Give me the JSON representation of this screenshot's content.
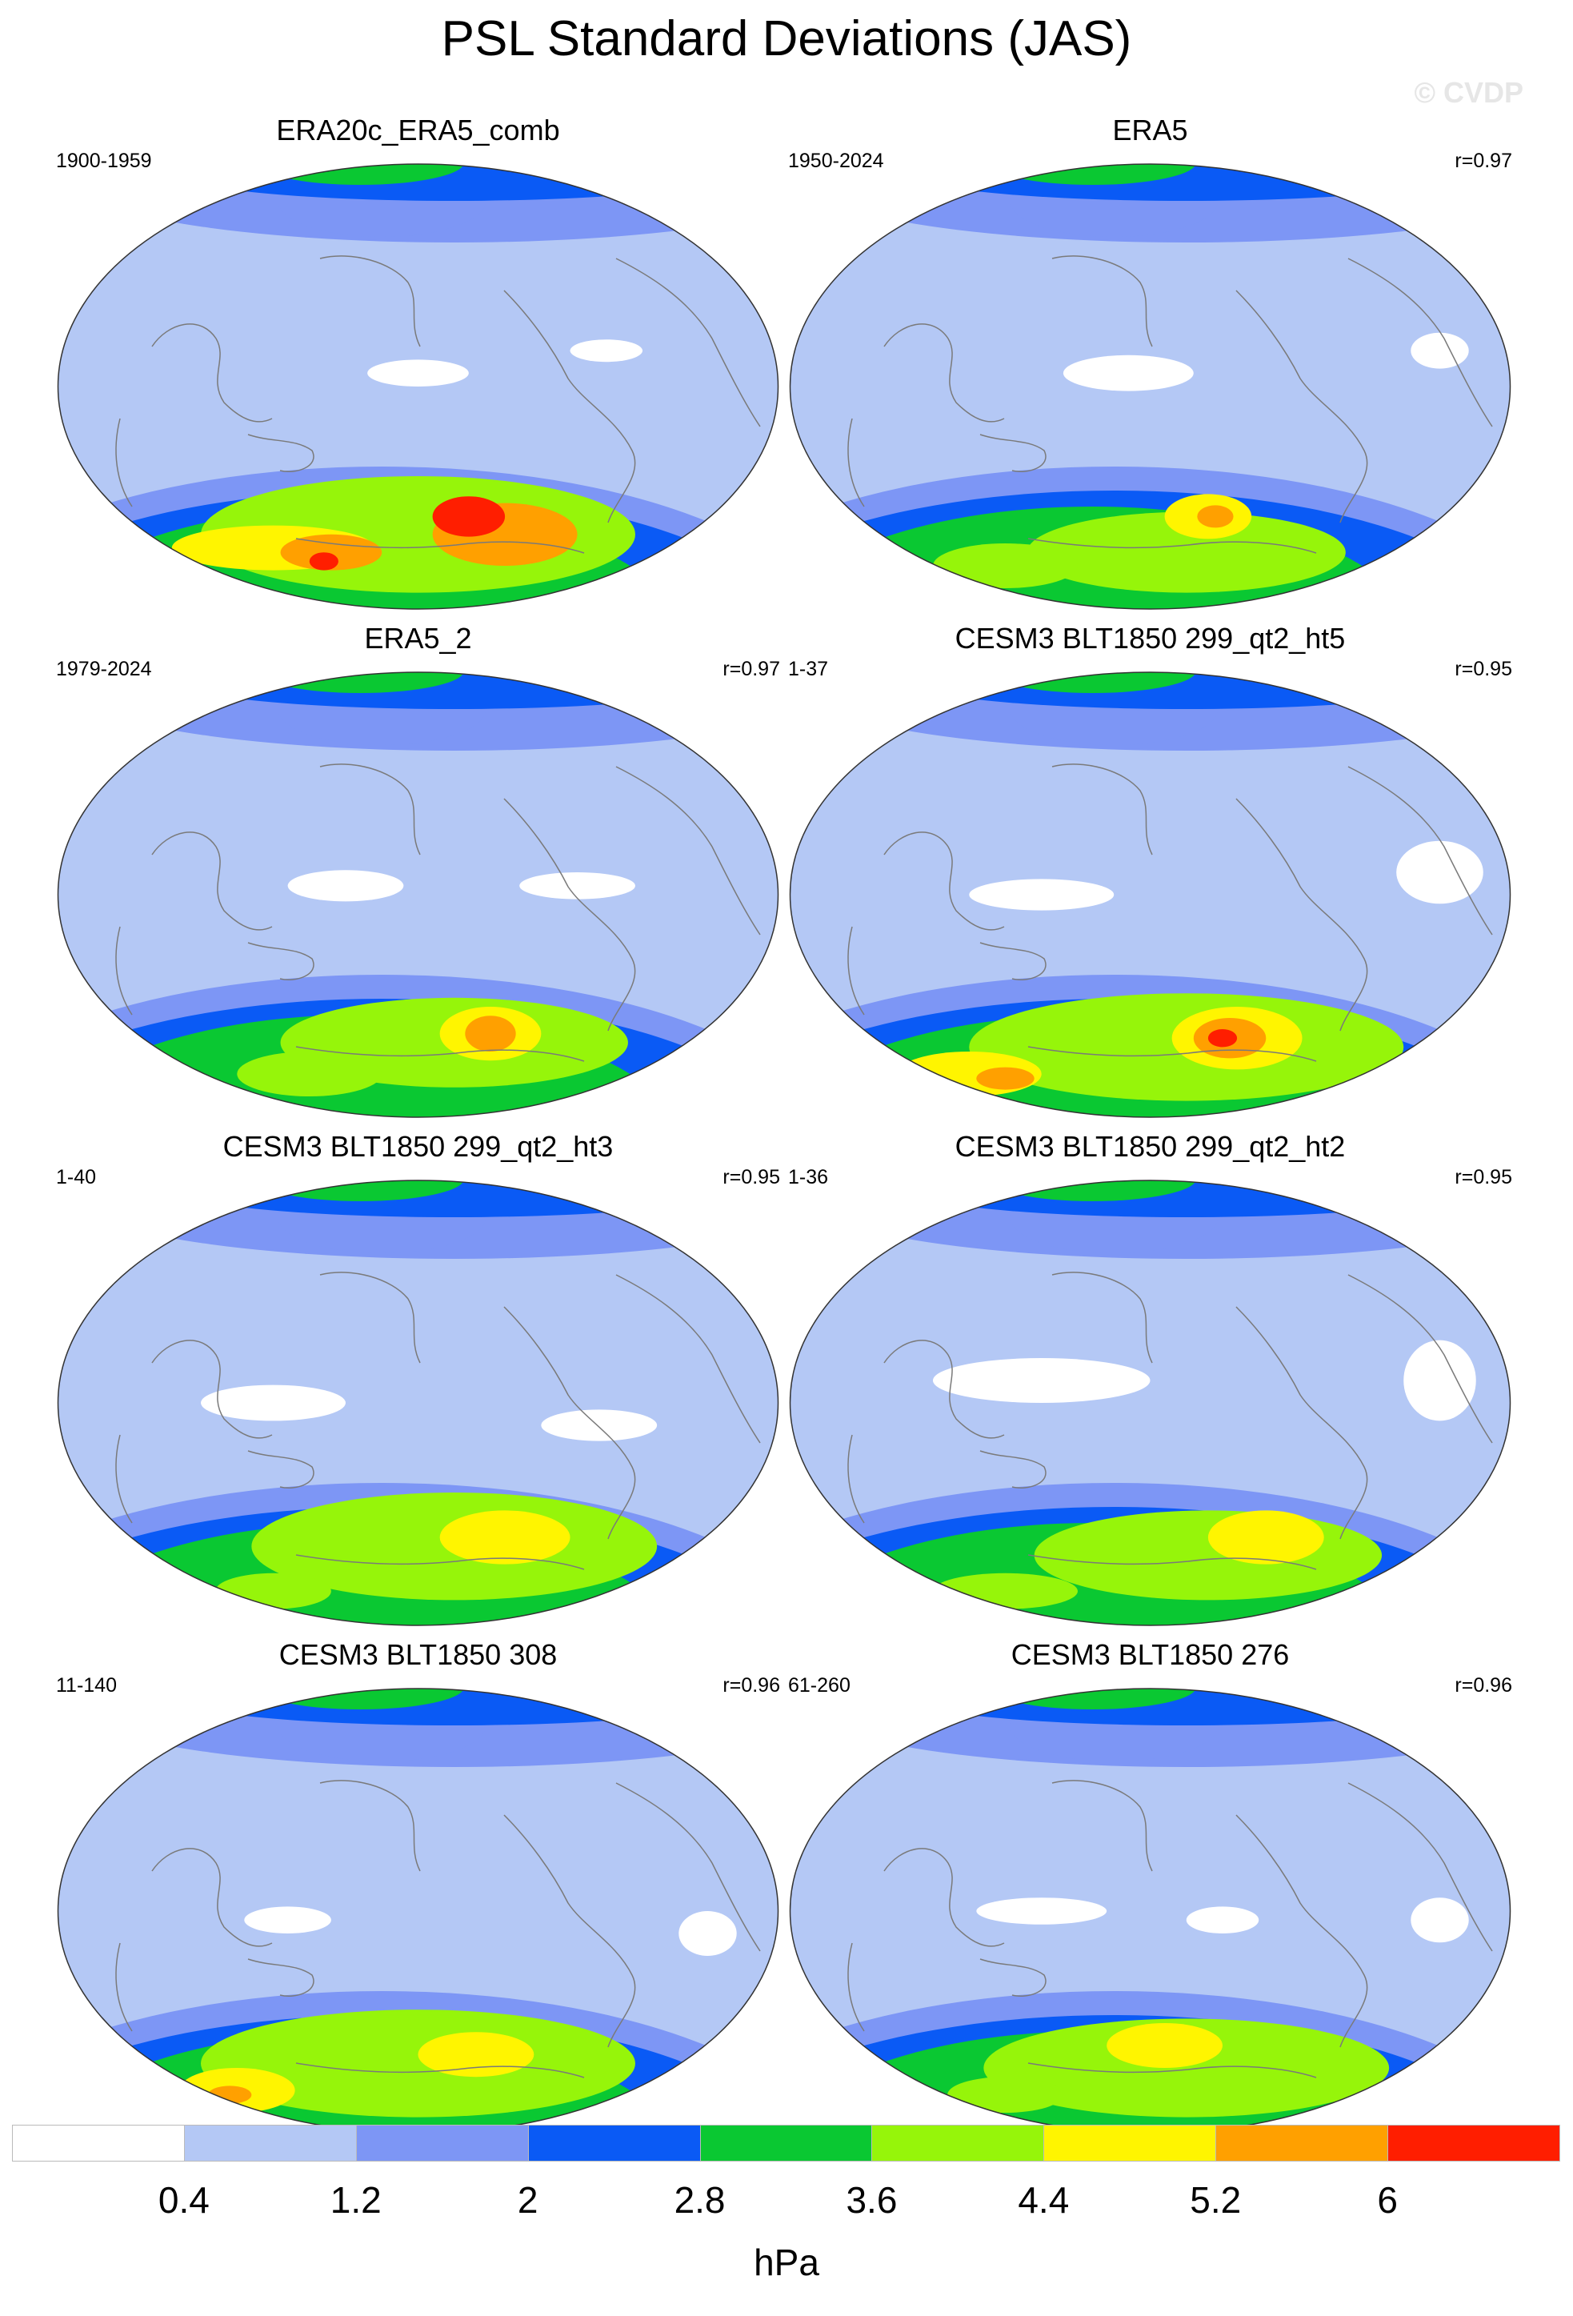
{
  "title": "PSL Standard Deviations (JAS)",
  "copyright": "© CVDP",
  "units": "hPa",
  "colorbar": {
    "levels": [
      "0.4",
      "1.2",
      "2",
      "2.8",
      "3.6",
      "4.4",
      "5.2",
      "6"
    ],
    "colors": [
      "#ffffff",
      "#b4c8f5",
      "#7d96f5",
      "#0a5af5",
      "#0ac832",
      "#96f50a",
      "#fff500",
      "#ffa000",
      "#ff1e00"
    ]
  },
  "panels": [
    {
      "title": "ERA20c_ERA5_comb",
      "years": "1900-1959",
      "corr": ""
    },
    {
      "title": "ERA5",
      "years": "1950-2024",
      "corr": "r=0.97"
    },
    {
      "title": "ERA5_2",
      "years": "1979-2024",
      "corr": "r=0.97"
    },
    {
      "title": "CESM3 BLT1850 299_qt2_ht5",
      "years": "1-37",
      "corr": "r=0.95"
    },
    {
      "title": "CESM3 BLT1850 299_qt2_ht3",
      "years": "1-40",
      "corr": "r=0.95"
    },
    {
      "title": "CESM3 BLT1850 299_qt2_ht2",
      "years": "1-36",
      "corr": "r=0.95"
    },
    {
      "title": "CESM3 BLT1850 308",
      "years": "11-140",
      "corr": "r=0.96"
    },
    {
      "title": "CESM3 BLT1850 276",
      "years": "61-260",
      "corr": "r=0.96"
    }
  ]
}
